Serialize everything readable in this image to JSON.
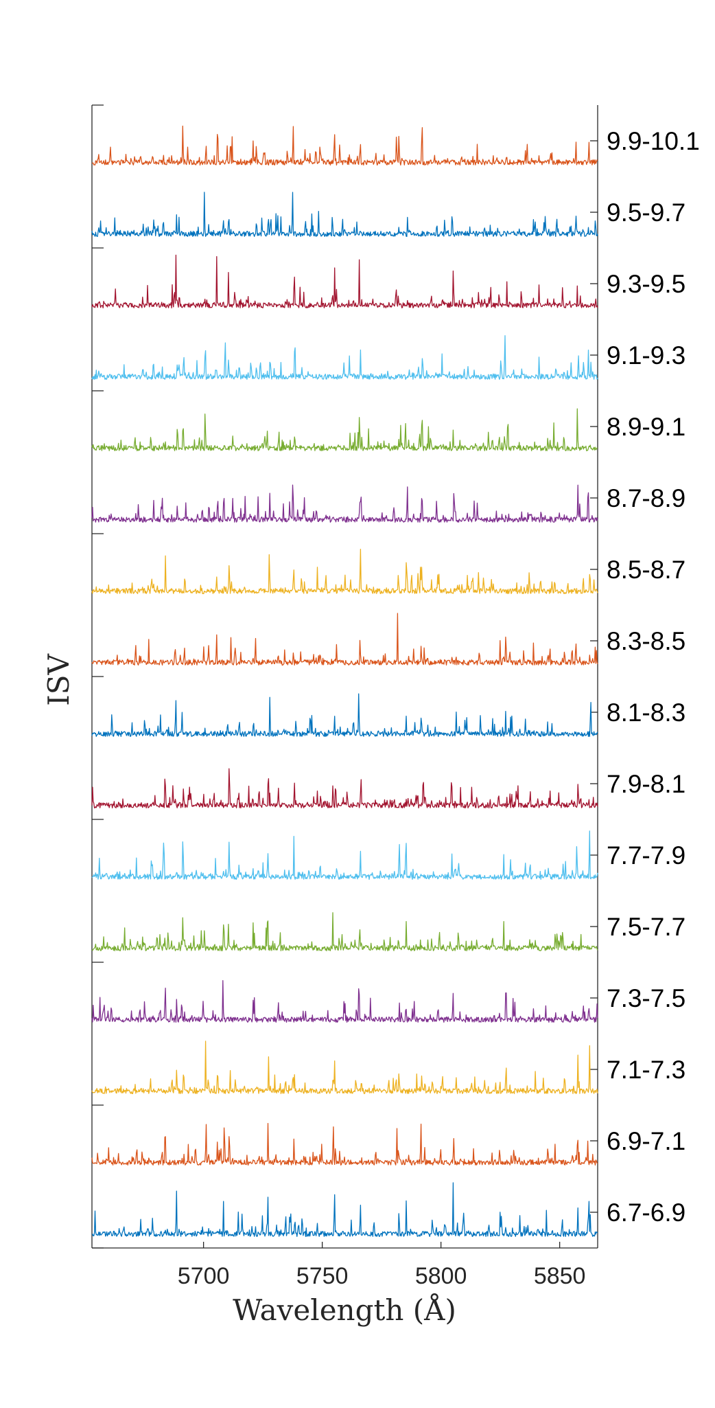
{
  "chart_data": {
    "type": "line",
    "xlabel": "Wavelength (Å)",
    "ylabel": "ISV",
    "xlim": [
      5653,
      5866
    ],
    "x_ticks": [
      5700,
      5750,
      5800,
      5850
    ],
    "grid": false,
    "legend": "none",
    "layout": "stacked-offset-spectra",
    "series": [
      {
        "name": "9.9-10.1",
        "color": "#D95319"
      },
      {
        "name": "9.5-9.7",
        "color": "#0072BD"
      },
      {
        "name": "9.3-9.5",
        "color": "#A2142F"
      },
      {
        "name": "9.1-9.3",
        "color": "#4DBEEE"
      },
      {
        "name": "8.9-9.1",
        "color": "#77AC30"
      },
      {
        "name": "8.7-8.9",
        "color": "#7E2F8E"
      },
      {
        "name": "8.5-8.7",
        "color": "#EDB120"
      },
      {
        "name": "8.3-8.5",
        "color": "#D95319"
      },
      {
        "name": "8.1-8.3",
        "color": "#0072BD"
      },
      {
        "name": "7.9-8.1",
        "color": "#A2142F"
      },
      {
        "name": "7.7-7.9",
        "color": "#4DBEEE"
      },
      {
        "name": "7.5-7.7",
        "color": "#77AC30"
      },
      {
        "name": "7.3-7.5",
        "color": "#7E2F8E"
      },
      {
        "name": "7.1-7.3",
        "color": "#EDB120"
      },
      {
        "name": "6.9-7.1",
        "color": "#D95319"
      },
      {
        "name": "6.7-6.9",
        "color": "#0072BD"
      }
    ]
  }
}
